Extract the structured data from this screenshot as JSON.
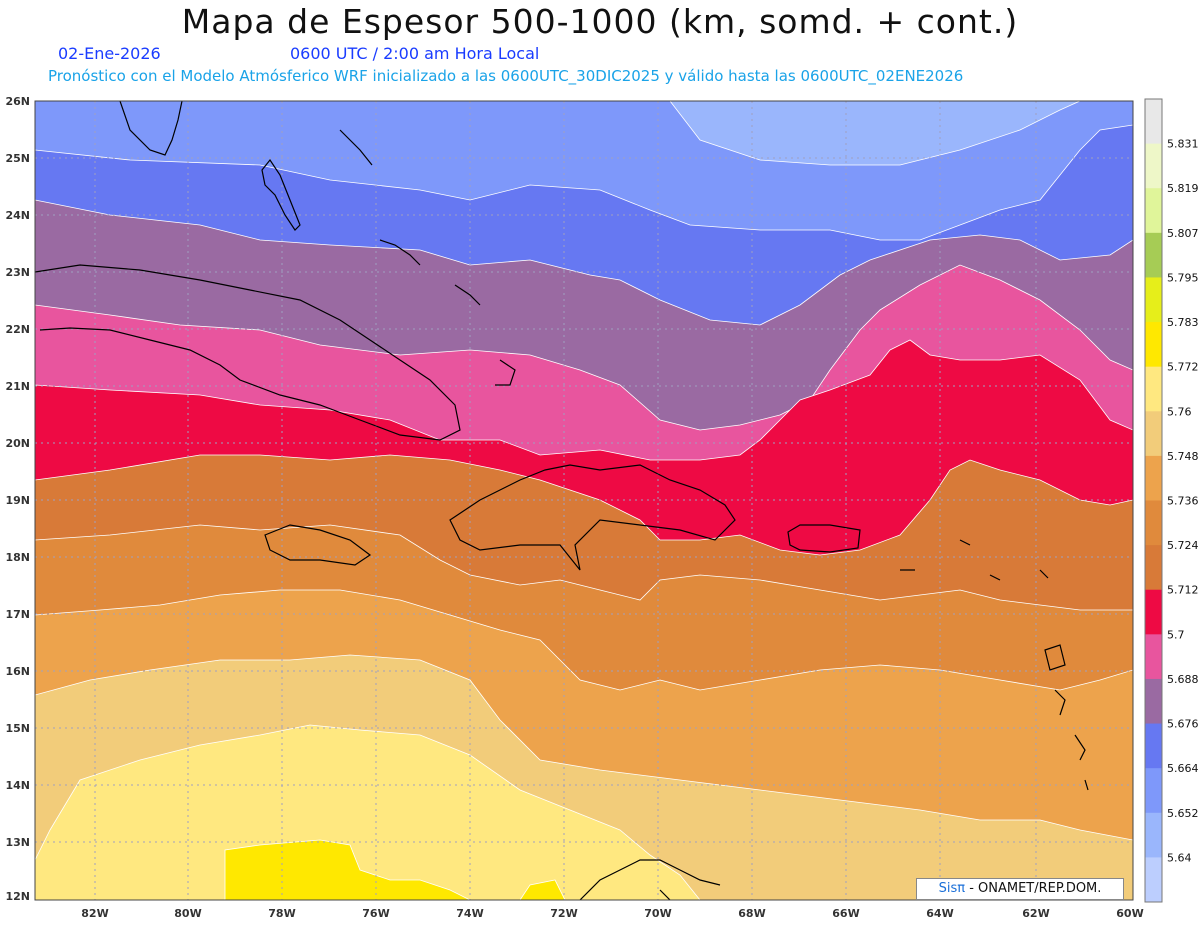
{
  "title": "Mapa de Espesor 500-1000 (km, somd. + cont.)",
  "date": "02-Ene-2026",
  "time": "0600 UTC / 2:00 am Hora Local",
  "subtitle": "Pronóstico con el Modelo Atmósferico WRF inicializado a las 0600UTC_30DIC2025 y válido hasta las  0600UTC_02ENE2026",
  "credit": {
    "brand": "Sisπ",
    "text": " - ONAMET/REP.DOM."
  },
  "map": {
    "lat_range": [
      12,
      26
    ],
    "lon_range": [
      -83,
      -60
    ],
    "lat_ticks": [
      "26N",
      "25N",
      "24N",
      "23N",
      "22N",
      "21N",
      "20N",
      "19N",
      "18N",
      "17N",
      "16N",
      "15N",
      "14N",
      "13N",
      "12N"
    ],
    "lon_ticks": [
      "82W",
      "80W",
      "78W",
      "76W",
      "74W",
      "72W",
      "70W",
      "68W",
      "66W",
      "64W",
      "62W",
      "60W"
    ]
  },
  "colorbar": {
    "levels": [
      "5.831",
      "5.819",
      "5.807",
      "5.795",
      "5.783",
      "5.772",
      "5.76",
      "5.748",
      "5.736",
      "5.724",
      "5.712",
      "5.7",
      "5.688",
      "5.676",
      "5.664",
      "5.652",
      "5.64"
    ],
    "colors": [
      "#e8e8e8",
      "#eef7c8",
      "#e0f59a",
      "#a6cc55",
      "#e6ee1a",
      "#ffe800",
      "#ffe880",
      "#f2cc7a",
      "#eda34c",
      "#e08a3c",
      "#d87a38",
      "#ee0a44",
      "#e8559e",
      "#9a6aa2",
      "#6678f2",
      "#7e98fa",
      "#9ab6fc",
      "#bccefe"
    ]
  },
  "colors": {
    "band_outline": "#ffffff",
    "coast": "#000000",
    "grid": "#a0a0c0"
  }
}
